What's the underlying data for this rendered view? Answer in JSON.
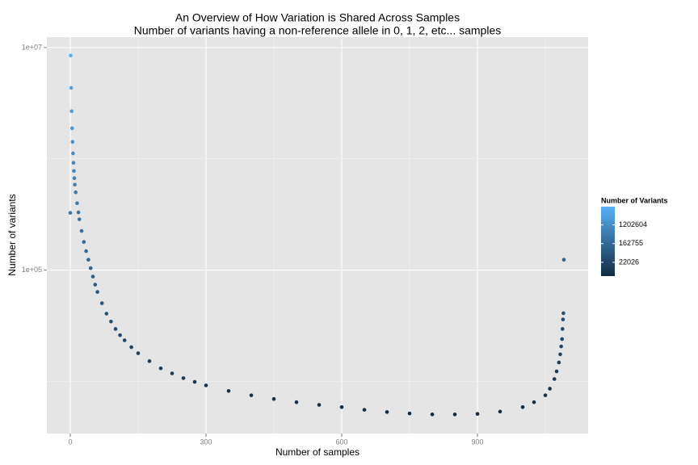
{
  "chart_data": {
    "type": "scatter",
    "title": "An Overview of How Variation is Shared Across Samples",
    "subtitle": "Number of variants having a non-reference allele in 0, 1, 2, etc... samples",
    "x_label": "Number of samples",
    "y_label": "Number of variants",
    "x": [
      0,
      1,
      2,
      3,
      4,
      5,
      6,
      7,
      8,
      9,
      10,
      12,
      15,
      18,
      20,
      25,
      30,
      35,
      40,
      45,
      50,
      55,
      60,
      70,
      80,
      90,
      100,
      110,
      120,
      135,
      150,
      175,
      200,
      225,
      250,
      275,
      300,
      350,
      400,
      450,
      500,
      550,
      600,
      650,
      700,
      750,
      800,
      850,
      900,
      950,
      1000,
      1025,
      1050,
      1060,
      1070,
      1075,
      1080,
      1083,
      1085,
      1087,
      1088,
      1089,
      1090,
      1091
    ],
    "values": [
      327000,
      8470000,
      4340000,
      2680000,
      1880000,
      1420000,
      1120000,
      920000,
      778000,
      670000,
      586000,
      500000,
      399000,
      330000,
      286000,
      225000,
      179000,
      148000,
      124000,
      104000,
      87500,
      74000,
      63700,
      50400,
      40600,
      34500,
      29600,
      26000,
      23400,
      20300,
      17900,
      15200,
      13100,
      11800,
      10700,
      9900,
      9200,
      8200,
      7500,
      6950,
      6500,
      6150,
      5870,
      5550,
      5300,
      5150,
      5050,
      5050,
      5100,
      5350,
      5870,
      6500,
      7500,
      8600,
      10500,
      12300,
      14800,
      17500,
      20600,
      24000,
      29600,
      36000,
      41000,
      124000
    ],
    "xlim": [
      -51.8,
      1144.6
    ],
    "ylim": [
      3400,
      12400000
    ],
    "xticks": [
      0,
      300,
      600,
      900
    ],
    "yticks": [
      {
        "value": 100000,
        "label": "1e+05"
      },
      {
        "value": 10000000,
        "label": "1e+07"
      }
    ],
    "log_y": true,
    "grid": true,
    "legend_position": "right",
    "legend": {
      "title": "Number of Variants",
      "ticks": [
        1202604,
        162755,
        22026
      ]
    },
    "colors": {
      "low": "#132B43",
      "high": "#56B1F7"
    }
  }
}
